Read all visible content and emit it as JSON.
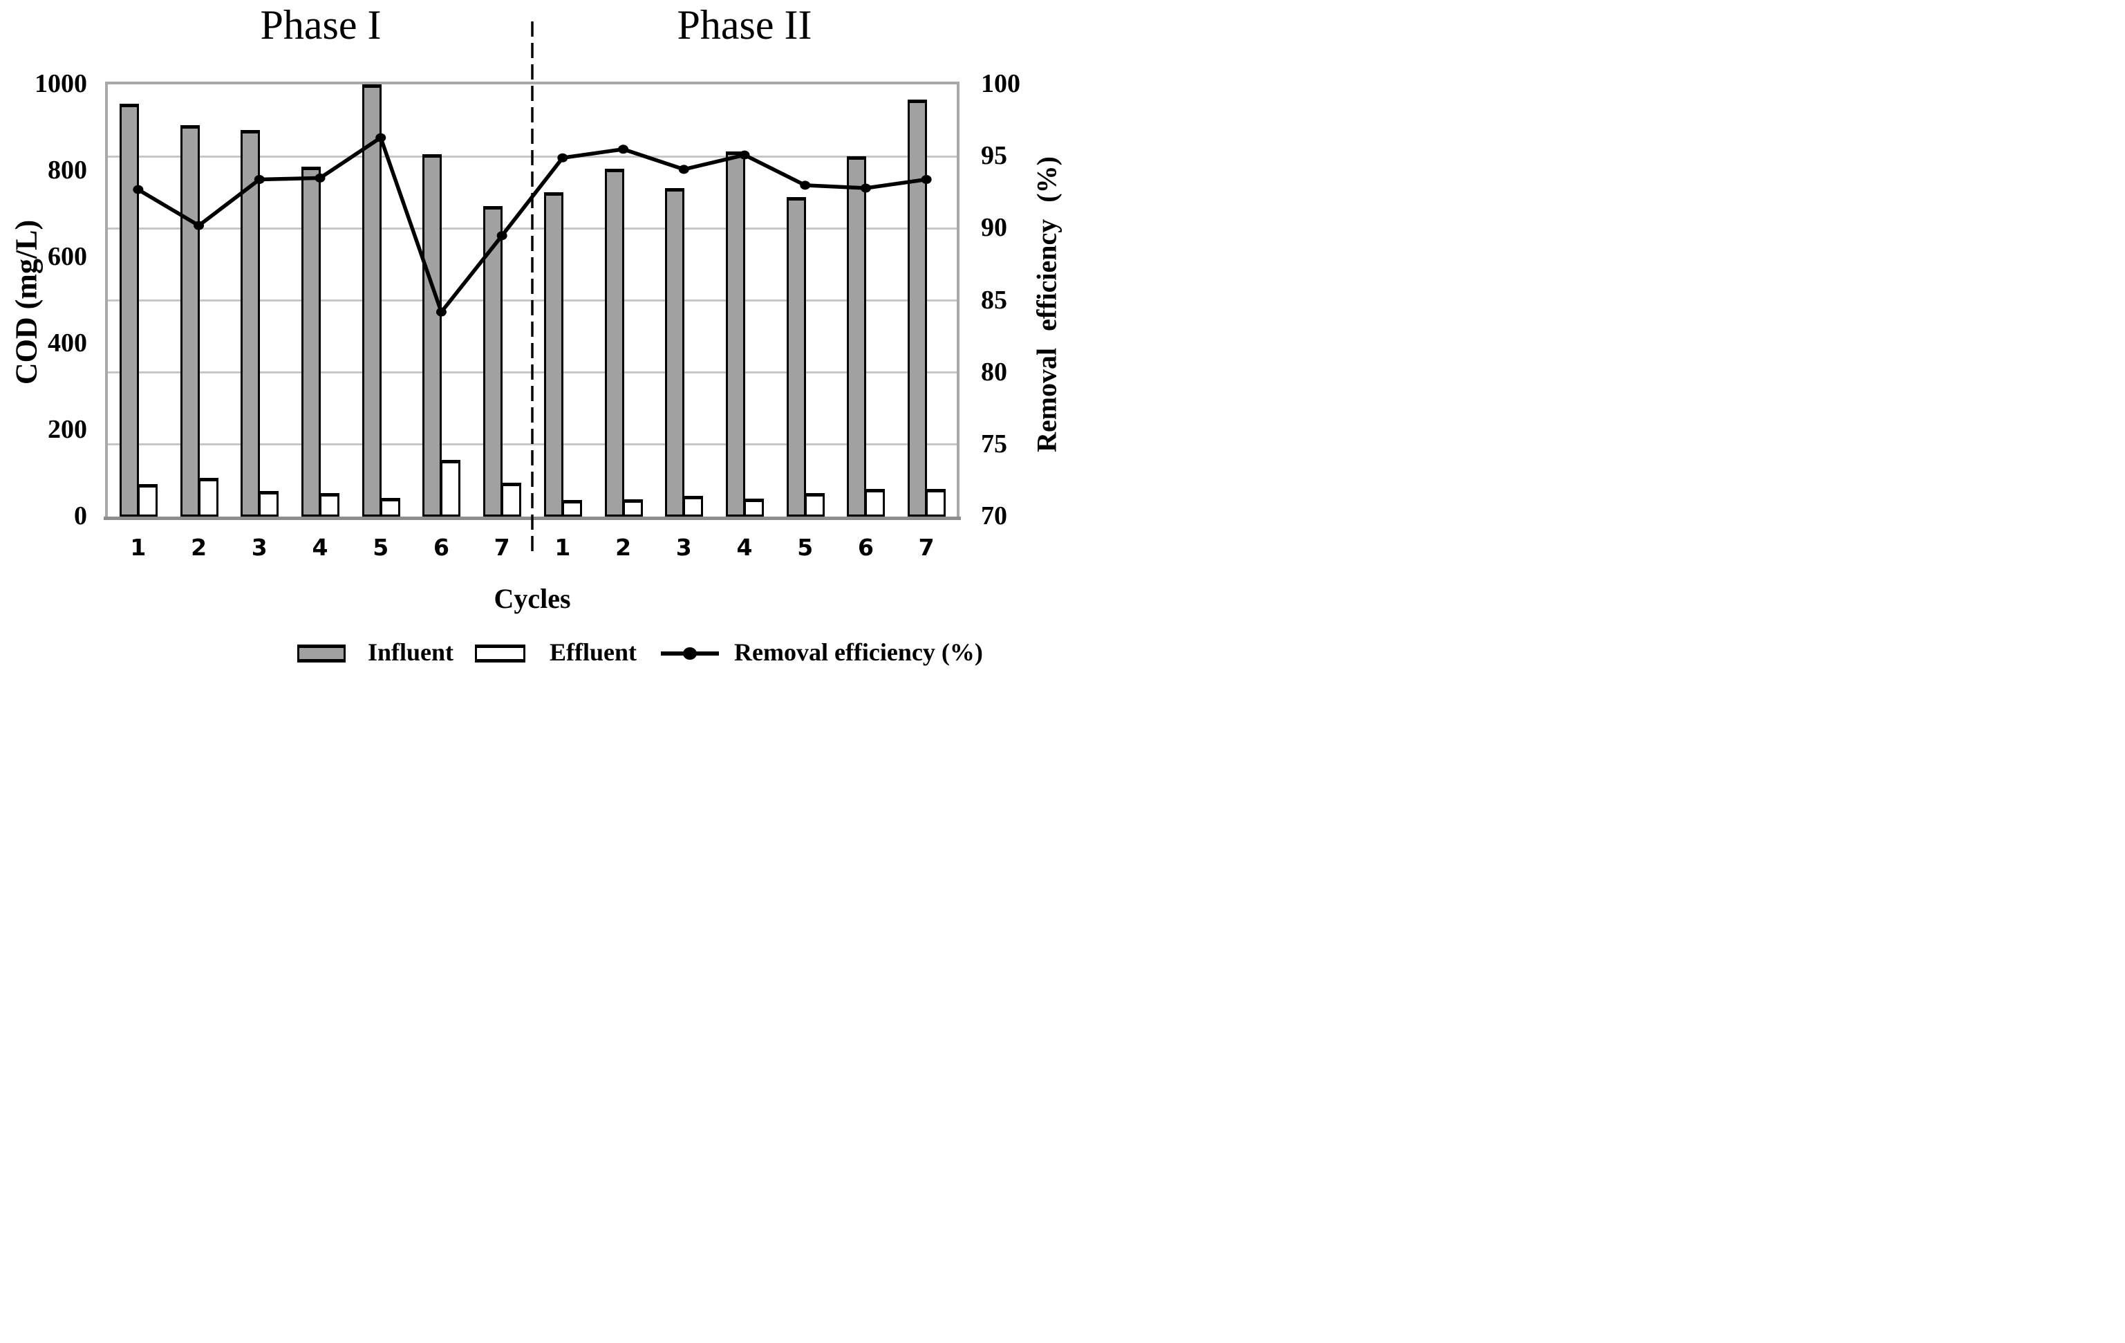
{
  "figure": {
    "background": "#ffffff",
    "legend": [
      {
        "label": "Influent",
        "swatch": "influent-bar"
      },
      {
        "label": "Effluent",
        "swatch": "effluent-bar"
      },
      {
        "label": "Removal efficiency (%)",
        "swatch": "line-marker"
      }
    ]
  },
  "chart_data": {
    "type": "combo bar+line, dual y-axes",
    "phase_labels": [
      "Phase I",
      "Phase II"
    ],
    "xlabel": "Cycles",
    "categories": [
      "1",
      "2",
      "3",
      "4",
      "5",
      "6",
      "7",
      "1",
      "2",
      "3",
      "4",
      "5",
      "6",
      "7"
    ],
    "phase_of_category": [
      1,
      1,
      1,
      1,
      1,
      1,
      1,
      2,
      2,
      2,
      2,
      2,
      2,
      2
    ],
    "left_axis": {
      "label": "COD (mg/L)",
      "min": 0,
      "max": 1000,
      "ticks": [
        0,
        200,
        400,
        600,
        800,
        1000
      ]
    },
    "right_axis": {
      "label": "Removal  efficiency  (%)",
      "min": 70,
      "max": 100,
      "ticks": [
        70,
        75,
        80,
        85,
        90,
        95,
        100
      ]
    },
    "grid": "horizontal gridlines at right-axis ticks (every 5%)",
    "legend_position": "bottom",
    "divider": {
      "style": "dashed vertical line",
      "between_categories": [
        7,
        8
      ]
    },
    "series": [
      {
        "name": "Influent",
        "type": "bar",
        "axis": "left",
        "values": [
          955,
          905,
          895,
          810,
          1000,
          838,
          718,
          750,
          805,
          760,
          845,
          740,
          833,
          965
        ],
        "note_clipped_at_max": [
          5
        ]
      },
      {
        "name": "Effluent",
        "type": "bar",
        "axis": "left",
        "values": [
          75,
          89,
          60,
          55,
          44,
          132,
          79,
          39,
          40,
          48,
          42,
          55,
          64,
          64
        ]
      },
      {
        "name": "Removal efficiency (%)",
        "type": "line",
        "axis": "right",
        "values": [
          92.7,
          90.2,
          93.4,
          93.5,
          96.3,
          84.2,
          89.5,
          94.9,
          95.5,
          94.1,
          95.1,
          93.0,
          92.8,
          93.4
        ]
      }
    ],
    "colors": {
      "influent_fill": "#a1a1a1",
      "effluent_fill": "#ffffff",
      "bar_border": "#000000",
      "efficiency_line": "#000000",
      "gridline": "#c7c7c7",
      "plot_border": "#a9a9a9",
      "baseline": "#8e8e8e",
      "text": "#000000",
      "background": "#ffffff"
    }
  }
}
